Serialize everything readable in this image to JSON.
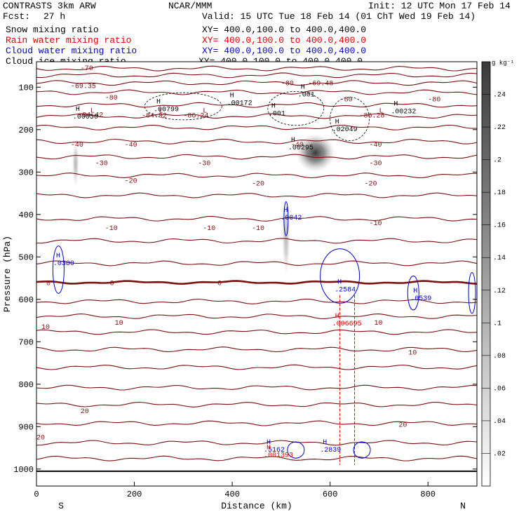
{
  "header": {
    "model": "CONTRASTS 3km ARW",
    "org": "NCAR/MMM",
    "init": "Init: 12 UTC Mon 17 Feb 14",
    "fcst_label": "Fcst:",
    "fcst_value": "27 h",
    "valid": "Valid: 15 UTC Tue 18 Feb 14 (01 ChT Wed 19 Feb 14)"
  },
  "legend": [
    {
      "label": "Snow mixing ratio",
      "xy": "XY= 400.0,100.0 to 400.0,400.0",
      "color": "#000000"
    },
    {
      "label": "Rain water mixing ratio",
      "xy": "XY= 400.0,100.0 to 400.0,400.0",
      "color": "#dd0000"
    },
    {
      "label": "Cloud water mixing ratio",
      "xy": "XY= 400.0,100.0 to 400.0,400.0",
      "color": "#0000cc"
    },
    {
      "label": "Cloud ice mixing ratio",
      "xy": "XY= 400.0,100.0 to 400.0,400.0",
      "color": "#000000"
    }
  ],
  "chart_data": {
    "type": "cross-section",
    "xlabel": "Distance (km)",
    "ylabel": "Pressure (hPa)",
    "xlim": [
      0,
      900
    ],
    "ylim": [
      1040,
      40
    ],
    "x_ticks": [
      0,
      200,
      400,
      600,
      800
    ],
    "y_ticks": [
      100,
      200,
      300,
      400,
      500,
      600,
      700,
      800,
      900,
      1000
    ],
    "x_end_labels": {
      "left": "S",
      "right": "N"
    },
    "colorbar": {
      "unit": "g kg⁻¹",
      "ticks": [
        ".02",
        ".04",
        ".06",
        ".08",
        ".1",
        ".12",
        ".14",
        ".16",
        ".18",
        ".2",
        ".22",
        ".24"
      ]
    },
    "temperature_isotherms": [
      {
        "p": 56,
        "label": "-70"
      },
      {
        "p": 72,
        "label": "-69.35"
      },
      {
        "p": 90,
        "label": "-80"
      },
      {
        "p": 112,
        "label": "-80"
      },
      {
        "p": 142,
        "label": "-70"
      },
      {
        "p": 168,
        "label": "-60"
      },
      {
        "p": 195,
        "label": "-50"
      },
      {
        "p": 228,
        "label": "-40"
      },
      {
        "p": 264,
        "label": "-30"
      },
      {
        "p": 308,
        "label": "-20"
      },
      {
        "p": 355,
        "label": "-20"
      },
      {
        "p": 410,
        "label": "-10"
      },
      {
        "p": 462,
        "label": "-10"
      },
      {
        "p": 515,
        "label": "-10"
      },
      {
        "p": 560,
        "label": "0",
        "bold": true
      },
      {
        "p": 605,
        "label": ""
      },
      {
        "p": 640,
        "label": "10"
      },
      {
        "p": 677,
        "label": "10"
      },
      {
        "p": 718,
        "label": "10"
      },
      {
        "p": 760,
        "label": ""
      },
      {
        "p": 808,
        "label": ""
      },
      {
        "p": 848,
        "label": "20"
      },
      {
        "p": 892,
        "label": "20"
      },
      {
        "p": 938,
        "label": ""
      },
      {
        "p": 975,
        "label": ""
      }
    ],
    "zero_isotherm_labels": [
      {
        "x": 20,
        "t": "0"
      },
      {
        "x": 150,
        "t": "0"
      },
      {
        "x": 370,
        "t": "0"
      }
    ],
    "isotherm_labels": [
      {
        "x": 90,
        "p": 60,
        "t": "-70"
      },
      {
        "x": 70,
        "p": 102,
        "t": "-69.35"
      },
      {
        "x": 140,
        "p": 129,
        "t": "-80"
      },
      {
        "x": 110,
        "p": 160,
        "t": "L"
      },
      {
        "x": 85,
        "p": 170,
        "t": "-84.42"
      },
      {
        "x": 250,
        "p": 160,
        "t": "L"
      },
      {
        "x": 215,
        "p": 171,
        "t": "-84.92"
      },
      {
        "x": 340,
        "p": 160,
        "t": "L"
      },
      {
        "x": 300,
        "p": 171,
        "t": "-86.24"
      },
      {
        "x": 500,
        "p": 95,
        "t": "-80"
      },
      {
        "x": 555,
        "p": 95,
        "t": "-69.48"
      },
      {
        "x": 620,
        "p": 133,
        "t": "-80"
      },
      {
        "x": 700,
        "p": 160,
        "t": "L"
      },
      {
        "x": 660,
        "p": 171,
        "t": "-86.28"
      },
      {
        "x": 800,
        "p": 133,
        "t": "-80"
      },
      {
        "x": 70,
        "p": 240,
        "t": "-40"
      },
      {
        "x": 180,
        "p": 240,
        "t": "-40"
      },
      {
        "x": 520,
        "p": 240,
        "t": "-40"
      },
      {
        "x": 680,
        "p": 240,
        "t": "-40"
      },
      {
        "x": 120,
        "p": 284,
        "t": "-30"
      },
      {
        "x": 330,
        "p": 284,
        "t": "-30"
      },
      {
        "x": 680,
        "p": 284,
        "t": "-30"
      },
      {
        "x": 180,
        "p": 325,
        "t": "-20"
      },
      {
        "x": 440,
        "p": 332,
        "t": "-20"
      },
      {
        "x": 670,
        "p": 332,
        "t": "-20"
      },
      {
        "x": 140,
        "p": 437,
        "t": "-10"
      },
      {
        "x": 340,
        "p": 437,
        "t": "-10"
      },
      {
        "x": 440,
        "p": 437,
        "t": "-10"
      },
      {
        "x": 680,
        "p": 425,
        "t": "-10"
      },
      {
        "x": 10,
        "p": 670,
        "t": "10"
      },
      {
        "x": 160,
        "p": 660,
        "t": "10"
      },
      {
        "x": 690,
        "p": 660,
        "t": "10"
      },
      {
        "x": 760,
        "p": 730,
        "t": "10"
      },
      {
        "x": 90,
        "p": 868,
        "t": "20"
      },
      {
        "x": 0,
        "p": 930,
        "t": "20"
      },
      {
        "x": 740,
        "p": 900,
        "t": "20"
      }
    ],
    "extrema": [
      {
        "type": "H",
        "value": ".00050",
        "x": 80,
        "p": 172,
        "color": "#000000"
      },
      {
        "type": "H",
        "value": ".00799",
        "x": 245,
        "p": 155,
        "color": "#000000"
      },
      {
        "type": "H",
        "value": ".00172",
        "x": 395,
        "p": 140,
        "color": "#000000"
      },
      {
        "type": "H",
        "value": ".001",
        "x": 480,
        "p": 165,
        "color": "#000000"
      },
      {
        "type": "H",
        "value": ".001",
        "x": 540,
        "p": 120,
        "color": "#000000"
      },
      {
        "type": "H",
        "value": ".00232",
        "x": 730,
        "p": 160,
        "color": "#000000"
      },
      {
        "type": "H",
        "value": ".00295",
        "x": 520,
        "p": 245,
        "color": "#000000"
      },
      {
        "type": "H",
        "value": ".02049",
        "x": 610,
        "p": 202,
        "color": "#000000"
      },
      {
        "type": "H",
        "value": ".0042",
        "x": 505,
        "p": 410,
        "color": "#0000cc"
      },
      {
        "type": "H",
        "value": ".0380",
        "x": 40,
        "p": 518,
        "color": "#0000cc"
      },
      {
        "type": "H",
        "value": ".2584",
        "x": 615,
        "p": 580,
        "color": "#0000cc"
      },
      {
        "type": "H",
        "value": ".0539",
        "x": 770,
        "p": 600,
        "color": "#0000cc"
      },
      {
        "type": "H",
        "value": ".006695",
        "x": 610,
        "p": 660,
        "color": "#dd0000"
      },
      {
        "type": "H",
        "value": ".5162",
        "x": 470,
        "p": 957,
        "color": "#0000cc"
      },
      {
        "type": "H",
        "value": ".2839",
        "x": 585,
        "p": 957,
        "color": "#0000cc"
      },
      {
        "type": "H",
        "value": ".001393",
        "x": 470,
        "p": 970,
        "color": "#dd0000"
      }
    ],
    "snow_field": [
      {
        "x": 570,
        "p": 255,
        "rx": 28,
        "rp": 28,
        "max": 0.24
      },
      {
        "x": 510,
        "p": 450,
        "rx": 6,
        "rp": 60,
        "max": 0.04
      },
      {
        "x": 80,
        "p": 280,
        "rx": 5,
        "rp": 35,
        "max": 0.04
      }
    ]
  }
}
